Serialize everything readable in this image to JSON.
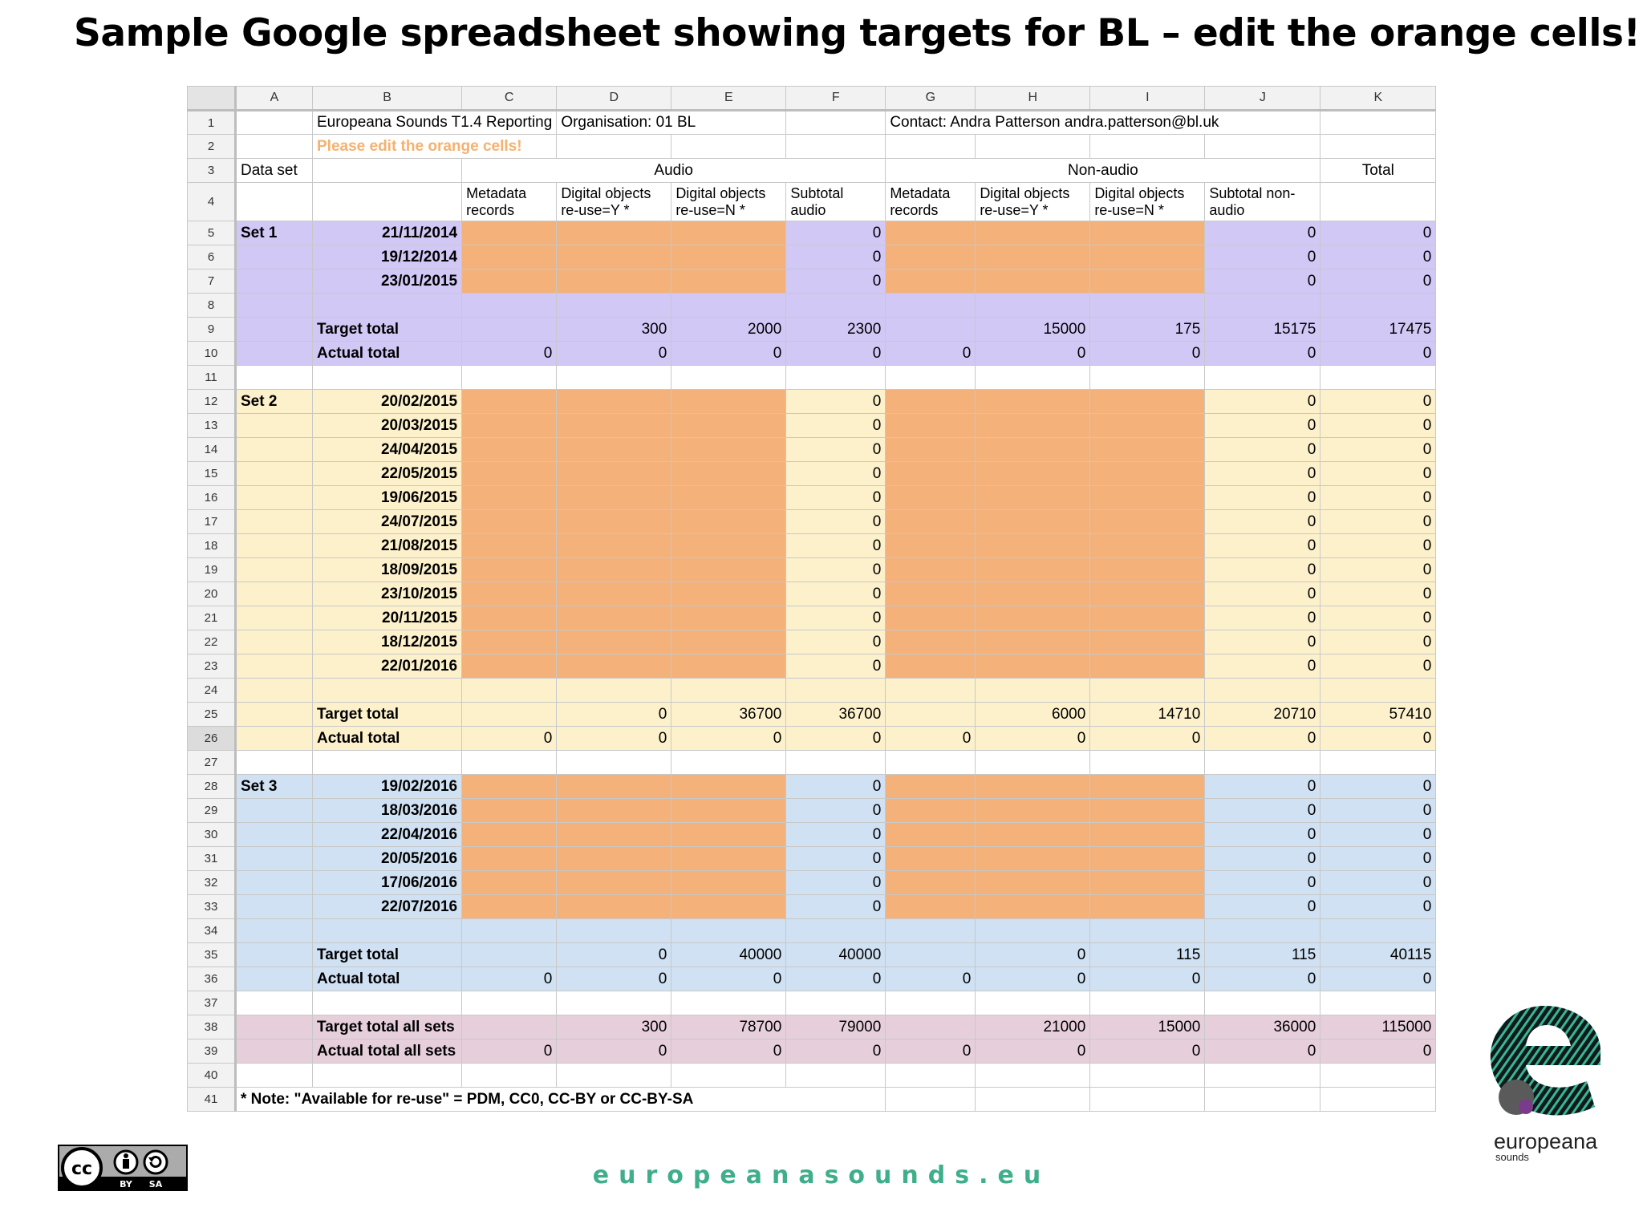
{
  "slide": {
    "title": "Sample Google spreadsheet showing targets for BL – edit the orange cells!",
    "footer_url": "europeanasounds.eu",
    "license_badge": {
      "icon": "cc-by-sa-icon",
      "by": "BY",
      "sa": "SA",
      "cc": "cc"
    },
    "logo": {
      "icon": "europeana-sounds-logo",
      "name": "europeana",
      "sub": "sounds"
    }
  },
  "colors": {
    "purple": "#d2c8f6",
    "yellow": "#fdf1cc",
    "blue": "#cfe1f3",
    "pink": "#e6cfdb",
    "orange": "#f4b17a",
    "footer_green": "#3fae8a"
  },
  "sheet": {
    "columns": [
      "A",
      "B",
      "C",
      "D",
      "E",
      "F",
      "G",
      "H",
      "I",
      "J",
      "K"
    ],
    "row1": {
      "report": "Europeana Sounds T1.4 Reporting",
      "organisation": "Organisation: 01 BL",
      "contact": "Contact: Andra Patterson andra.patterson@bl.uk"
    },
    "row2": {
      "note": "Please edit the orange cells!"
    },
    "row3": {
      "data_set": "Data set",
      "audio": "Audio",
      "non_audio": "Non-audio",
      "total": "Total"
    },
    "row4": {
      "c": "Metadata records",
      "d": "Digital objects re-use=Y *",
      "e": "Digital objects re-use=N *",
      "f": "Subtotal audio",
      "g": "Metadata records",
      "h": "Digital objects re-use=Y *",
      "i": "Digital objects re-use=N *",
      "j": "Subtotal non-audio"
    },
    "sets": [
      {
        "name": "Set 1",
        "color": "purple",
        "start_row": 5,
        "dates": [
          "21/11/2014",
          "19/12/2014",
          "23/01/2015"
        ],
        "target": {
          "label": "Target total",
          "c": "",
          "d": "300",
          "e": "2000",
          "f": "2300",
          "g": "",
          "h": "15000",
          "i": "175",
          "j": "15175",
          "k": "17475"
        },
        "actual": {
          "label": "Actual total",
          "c": "0",
          "d": "0",
          "e": "0",
          "f": "0",
          "g": "0",
          "h": "0",
          "i": "0",
          "j": "0",
          "k": "0"
        }
      },
      {
        "name": "Set 2",
        "color": "yellow",
        "start_row": 12,
        "dates": [
          "20/02/2015",
          "20/03/2015",
          "24/04/2015",
          "22/05/2015",
          "19/06/2015",
          "24/07/2015",
          "21/08/2015",
          "18/09/2015",
          "23/10/2015",
          "20/11/2015",
          "18/12/2015",
          "22/01/2016"
        ],
        "target": {
          "label": "Target total",
          "c": "",
          "d": "0",
          "e": "36700",
          "f": "36700",
          "g": "",
          "h": "6000",
          "i": "14710",
          "j": "20710",
          "k": "57410"
        },
        "actual": {
          "label": "Actual total",
          "c": "0",
          "d": "0",
          "e": "0",
          "f": "0",
          "g": "0",
          "h": "0",
          "i": "0",
          "j": "0",
          "k": "0"
        }
      },
      {
        "name": "Set 3",
        "color": "blue",
        "start_row": 28,
        "dates": [
          "19/02/2016",
          "18/03/2016",
          "22/04/2016",
          "20/05/2016",
          "17/06/2016",
          "22/07/2016"
        ],
        "target": {
          "label": "Target total",
          "c": "",
          "d": "0",
          "e": "40000",
          "f": "40000",
          "g": "",
          "h": "0",
          "i": "115",
          "j": "115",
          "k": "40115"
        },
        "actual": {
          "label": "Actual total",
          "c": "0",
          "d": "0",
          "e": "0",
          "f": "0",
          "g": "0",
          "h": "0",
          "i": "0",
          "j": "0",
          "k": "0"
        }
      }
    ],
    "date_row_values": {
      "f": "0",
      "j": "0",
      "k": "0"
    },
    "all_sets": {
      "target": {
        "label": "Target total all sets",
        "c": "",
        "d": "300",
        "e": "78700",
        "f": "79000",
        "g": "",
        "h": "21000",
        "i": "15000",
        "j": "36000",
        "k": "115000"
      },
      "actual": {
        "label": "Actual total all sets",
        "c": "0",
        "d": "0",
        "e": "0",
        "f": "0",
        "g": "0",
        "h": "0",
        "i": "0",
        "j": "0",
        "k": "0"
      }
    },
    "note": "* Note: \"Available for re-use\" = PDM, CC0, CC-BY or CC-BY-SA",
    "selected_row": 26,
    "total_rows": 41
  }
}
